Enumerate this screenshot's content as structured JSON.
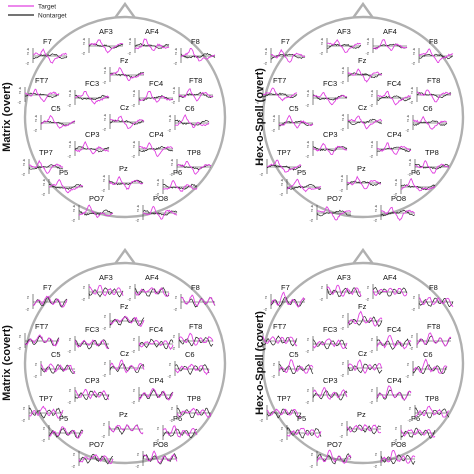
{
  "legend": {
    "target_label": "Target",
    "nontarget_label": "Nontarget",
    "target_color": "#e040e0",
    "nontarget_color": "#222222"
  },
  "colors": {
    "head_outline": "#b0b0b0",
    "axis": "#333333"
  },
  "chart_data": [
    {
      "type": "line",
      "title": "Matrix (overt)",
      "channels": [
        "F7",
        "AF3",
        "AF4",
        "F8",
        "Fz",
        "FT7",
        "FC3",
        "FC4",
        "FT8",
        "C5",
        "Cz",
        "C6",
        "CP3",
        "CP4",
        "TP7",
        "TP8",
        "P5",
        "Pz",
        "P6",
        "PO7",
        "PO8"
      ],
      "y_tick_labels": [
        "4",
        "2",
        "-2"
      ],
      "series": [
        {
          "name": "Target"
        },
        {
          "name": "Nontarget"
        }
      ]
    },
    {
      "type": "line",
      "title": "Hex-o-Spell (overt)",
      "channels": [
        "F7",
        "AF3",
        "AF4",
        "F8",
        "Fz",
        "FT7",
        "FC3",
        "FC4",
        "FT8",
        "C5",
        "Cz",
        "C6",
        "CP3",
        "CP4",
        "TP7",
        "TP8",
        "P5",
        "Pz",
        "P6",
        "PO7",
        "PO8"
      ],
      "y_tick_labels": [
        "4",
        "2",
        "-2"
      ],
      "series": [
        {
          "name": "Target"
        },
        {
          "name": "Nontarget"
        }
      ]
    },
    {
      "type": "line",
      "title": "Matrix (covert)",
      "channels": [
        "F7",
        "AF3",
        "AF4",
        "F8",
        "Fz",
        "FT7",
        "FC3",
        "FC4",
        "FT8",
        "C5",
        "Cz",
        "C6",
        "CP3",
        "CP4",
        "TP7",
        "TP8",
        "P5",
        "Pz",
        "P6",
        "PO7",
        "PO8"
      ],
      "y_tick_labels": [
        "2",
        "-2"
      ],
      "series": [
        {
          "name": "Target"
        },
        {
          "name": "Nontarget"
        }
      ]
    },
    {
      "type": "line",
      "title": "Hex-o-Spell (covert)",
      "channels": [
        "F7",
        "AF3",
        "AF4",
        "F8",
        "Fz",
        "FT7",
        "FC3",
        "FC4",
        "FT8",
        "C5",
        "Cz",
        "C6",
        "CP3",
        "CP4",
        "TP7",
        "TP8",
        "P5",
        "Pz",
        "P6",
        "PO7",
        "PO8"
      ],
      "y_tick_labels": [
        "2",
        "-2"
      ],
      "series": [
        {
          "name": "Target"
        },
        {
          "name": "Nontarget"
        }
      ]
    }
  ]
}
